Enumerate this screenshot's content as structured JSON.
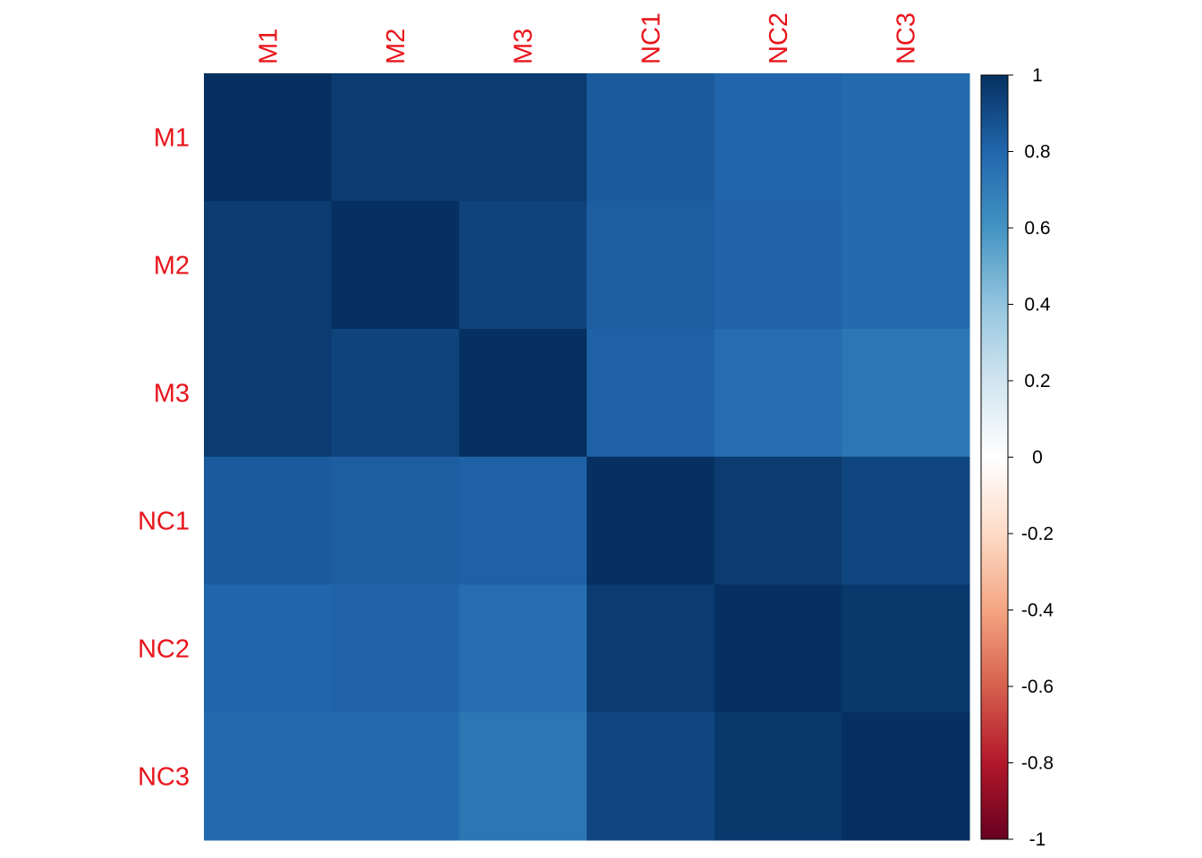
{
  "chart_data": {
    "type": "heatmap",
    "title": "",
    "xlabel": "",
    "ylabel": "",
    "rows": [
      "M1",
      "M2",
      "M3",
      "NC1",
      "NC2",
      "NC3"
    ],
    "columns": [
      "M1",
      "M2",
      "M3",
      "NC1",
      "NC2",
      "NC3"
    ],
    "values": [
      [
        1.0,
        0.96,
        0.96,
        0.84,
        0.8,
        0.78
      ],
      [
        0.96,
        1.0,
        0.93,
        0.83,
        0.81,
        0.78
      ],
      [
        0.96,
        0.93,
        1.0,
        0.82,
        0.77,
        0.73
      ],
      [
        0.84,
        0.83,
        0.82,
        1.0,
        0.96,
        0.92
      ],
      [
        0.8,
        0.81,
        0.77,
        0.96,
        1.0,
        0.97
      ],
      [
        0.78,
        0.78,
        0.73,
        0.92,
        0.97,
        1.0
      ]
    ],
    "colorbar": {
      "range": [
        -1,
        1
      ],
      "ticks": [
        1,
        0.8,
        0.6,
        0.4,
        0.2,
        0,
        -0.2,
        -0.4,
        -0.6,
        -0.8,
        -1
      ],
      "tick_labels": [
        "1",
        "0.8",
        "0.6",
        "0.4",
        "0.2",
        "0",
        "-0.2",
        "-0.4",
        "-0.6",
        "-0.8",
        "-1"
      ],
      "color_stops": [
        "#67001F",
        "#B2182B",
        "#D6604D",
        "#F4A582",
        "#FDDBC7",
        "#FFFFFF",
        "#D1E5F0",
        "#92C5DE",
        "#4393C3",
        "#2166AC",
        "#053061"
      ]
    },
    "label_color": "#E8141B",
    "grid": false,
    "legend": "right"
  }
}
